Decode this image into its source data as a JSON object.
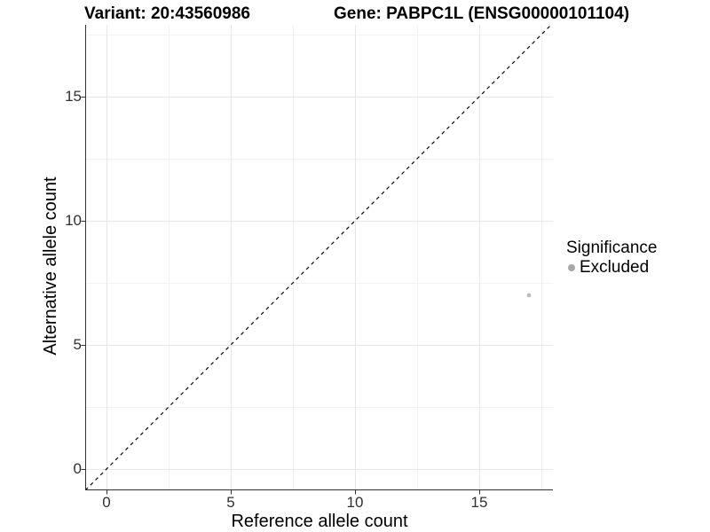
{
  "chart_data": {
    "type": "scatter",
    "title_left": "Variant: 20:43560986",
    "title_right": "Gene: PABPC1L (ENSG00000101104)",
    "xlabel": "Reference allele count",
    "ylabel": "Alternative allele count",
    "xlim": [
      -0.85,
      17.95
    ],
    "ylim": [
      -0.85,
      17.95
    ],
    "x_major_ticks": [
      0,
      5,
      10,
      15
    ],
    "y_major_ticks": [
      0,
      5,
      10,
      15
    ],
    "x_minor_gridlines": [
      2.5,
      7.5,
      12.5,
      17.5
    ],
    "y_minor_gridlines": [
      2.5,
      7.5,
      12.5,
      17.5
    ],
    "grid": "major+minor",
    "reference_line": {
      "type": "identity",
      "slope": 1,
      "intercept": 0,
      "style": "dashed",
      "color": "#000000"
    },
    "series": [
      {
        "name": "Excluded",
        "color": "#bcbcbc",
        "point_radius": 2.4,
        "points": [
          [
            17,
            7
          ]
        ]
      }
    ],
    "legend": {
      "position": "right",
      "title": "Significance",
      "entries": [
        {
          "label": "Excluded",
          "color": "#a8a8a8",
          "marker": "circle"
        }
      ]
    }
  },
  "colors": {
    "background": "#ffffff",
    "axis_line": "#333333",
    "tick_mark": "#333333",
    "grid_major": "#e7e7e7",
    "grid_minor": "#f2f2f2"
  }
}
